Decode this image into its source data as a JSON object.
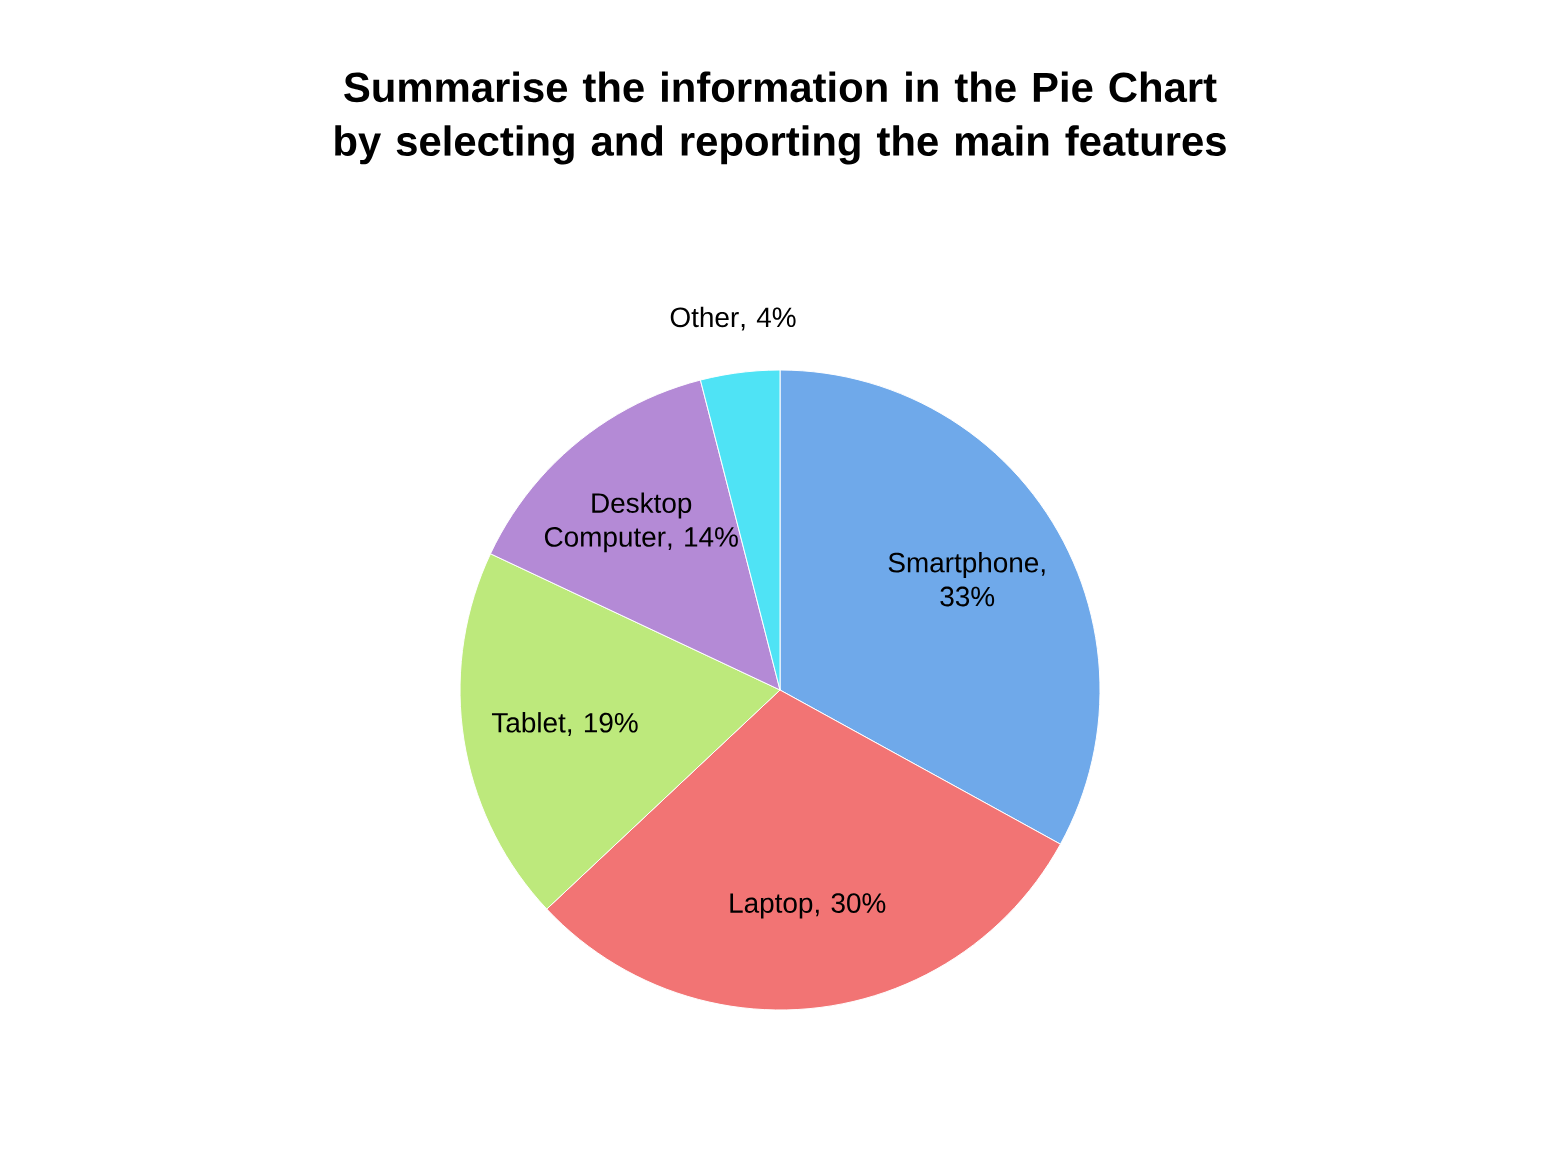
{
  "chart_data": {
    "type": "pie",
    "title": "Summarise the information in the Pie Chart by selecting and reporting the main features",
    "categories": [
      "Smartphone",
      "Laptop",
      "Tablet",
      "Desktop Computer",
      "Other"
    ],
    "values": [
      33,
      30,
      19,
      14,
      4
    ],
    "value_labels": [
      ", 33%",
      ", 30%",
      ", 19%",
      ", 14%",
      ", 4%"
    ],
    "colors": [
      "#6fa9ea",
      "#f27474",
      "#bde97c",
      "#b48ad6",
      "#4fe3f5"
    ],
    "legend": false
  }
}
